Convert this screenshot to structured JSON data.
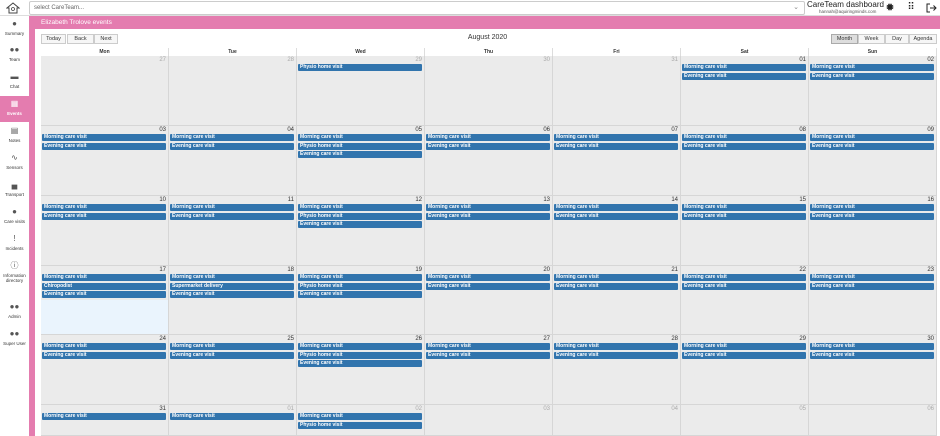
{
  "topbar": {
    "select_placeholder": "select CareTeam...",
    "dashboard_title": "CareTeam dashboard",
    "user_email": "hannah@aquiringminds.com"
  },
  "sidebar": {
    "items": [
      {
        "label": "Summary",
        "icon": "user-icon"
      },
      {
        "label": "Team",
        "icon": "team-icon"
      },
      {
        "label": "Chat",
        "icon": "chat-icon"
      },
      {
        "label": "Events",
        "icon": "calendar-icon",
        "active": true
      },
      {
        "label": "Notes",
        "icon": "notes-icon"
      },
      {
        "label": "Sensors",
        "icon": "pulse-icon"
      },
      {
        "label": "Transport",
        "icon": "car-icon"
      },
      {
        "label": "Care visits",
        "icon": "carer-icon"
      },
      {
        "label": "Incidents",
        "icon": "exclamation-icon"
      },
      {
        "label": "Information directory",
        "icon": "info-icon"
      },
      {
        "label": "Admin",
        "icon": "admin-icon"
      },
      {
        "label": "Super User",
        "icon": "super-user-icon"
      }
    ]
  },
  "header": {
    "title": "Elizabeth Trolove events"
  },
  "toolbar": {
    "today": "Today",
    "back": "Back",
    "next": "Next",
    "month_title": "August 2020",
    "views": [
      "Month",
      "Week",
      "Day",
      "Agenda"
    ],
    "active_view": "Month"
  },
  "calendar": {
    "days_of_week": [
      "Mon",
      "Tue",
      "Wed",
      "Thu",
      "Fri",
      "Sat",
      "Sun"
    ],
    "weeks": [
      [
        {
          "day": "27",
          "off": true,
          "events": []
        },
        {
          "day": "28",
          "off": true,
          "events": []
        },
        {
          "day": "29",
          "off": true,
          "events": [
            "Physio home visit"
          ]
        },
        {
          "day": "30",
          "off": true,
          "events": []
        },
        {
          "day": "31",
          "off": true,
          "events": []
        },
        {
          "day": "01",
          "events": [
            "Morning care visit",
            "Evening care visit"
          ]
        },
        {
          "day": "02",
          "events": [
            "Morning care visit",
            "Evening care visit"
          ]
        }
      ],
      [
        {
          "day": "03",
          "events": [
            "Morning care visit",
            "Evening care visit"
          ]
        },
        {
          "day": "04",
          "events": [
            "Morning care visit",
            "Evening care visit"
          ]
        },
        {
          "day": "05",
          "events": [
            "Morning care visit",
            "Physio home visit",
            "Evening care visit"
          ]
        },
        {
          "day": "06",
          "events": [
            "Morning care visit",
            "Evening care visit"
          ]
        },
        {
          "day": "07",
          "events": [
            "Morning care visit",
            "Evening care visit"
          ]
        },
        {
          "day": "08",
          "events": [
            "Morning care visit",
            "Evening care visit"
          ]
        },
        {
          "day": "09",
          "events": [
            "Morning care visit",
            "Evening care visit"
          ]
        }
      ],
      [
        {
          "day": "10",
          "events": [
            "Morning care visit",
            "Evening care visit"
          ]
        },
        {
          "day": "11",
          "events": [
            "Morning care visit",
            "Evening care visit"
          ]
        },
        {
          "day": "12",
          "events": [
            "Morning care visit",
            "Physio home visit",
            "Evening care visit"
          ]
        },
        {
          "day": "13",
          "events": [
            "Morning care visit",
            "Evening care visit"
          ]
        },
        {
          "day": "14",
          "events": [
            "Morning care visit",
            "Evening care visit"
          ]
        },
        {
          "day": "15",
          "events": [
            "Morning care visit",
            "Evening care visit"
          ]
        },
        {
          "day": "16",
          "events": [
            "Morning care visit",
            "Evening care visit"
          ]
        }
      ],
      [
        {
          "day": "17",
          "today": true,
          "events": [
            "Morning care visit",
            "Chiropodist",
            "Evening care visit"
          ]
        },
        {
          "day": "18",
          "events": [
            "Morning care visit",
            "Supermarket delivery",
            "Evening care visit"
          ]
        },
        {
          "day": "19",
          "events": [
            "Morning care visit",
            "Physio home visit",
            "Evening care visit"
          ]
        },
        {
          "day": "20",
          "events": [
            "Morning care visit",
            "Evening care visit"
          ]
        },
        {
          "day": "21",
          "events": [
            "Morning care visit",
            "Evening care visit"
          ]
        },
        {
          "day": "22",
          "events": [
            "Morning care visit",
            "Evening care visit"
          ]
        },
        {
          "day": "23",
          "events": [
            "Morning care visit",
            "Evening care visit"
          ]
        }
      ],
      [
        {
          "day": "24",
          "events": [
            "Morning care visit",
            "Evening care visit"
          ]
        },
        {
          "day": "25",
          "events": [
            "Morning care visit",
            "Evening care visit"
          ]
        },
        {
          "day": "26",
          "events": [
            "Morning care visit",
            "Physio home visit",
            "Evening care visit"
          ]
        },
        {
          "day": "27",
          "events": [
            "Morning care visit",
            "Evening care visit"
          ]
        },
        {
          "day": "28",
          "events": [
            "Morning care visit",
            "Evening care visit"
          ]
        },
        {
          "day": "29",
          "events": [
            "Morning care visit",
            "Evening care visit"
          ]
        },
        {
          "day": "30",
          "events": [
            "Morning care visit",
            "Evening care visit"
          ]
        }
      ],
      [
        {
          "day": "31",
          "events": [
            "Morning care visit"
          ]
        },
        {
          "day": "01",
          "off": true,
          "events": [
            "Morning care visit"
          ]
        },
        {
          "day": "02",
          "off": true,
          "events": [
            "Morning care visit",
            "Physio home visit"
          ]
        },
        {
          "day": "03",
          "off": true,
          "events": []
        },
        {
          "day": "04",
          "off": true,
          "events": []
        },
        {
          "day": "05",
          "off": true,
          "events": []
        },
        {
          "day": "06",
          "off": true,
          "events": []
        }
      ]
    ]
  }
}
